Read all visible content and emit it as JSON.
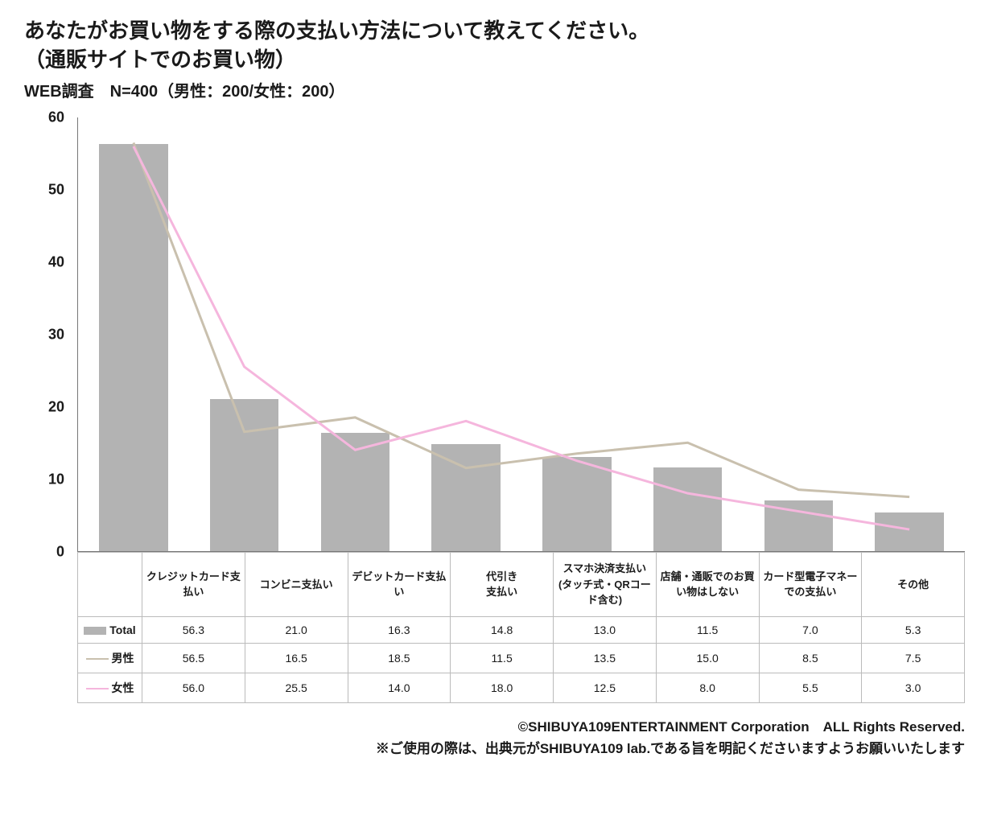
{
  "title": "あなたがお買い物をする際の支払い方法について教えてください。\n（通販サイトでのお買い物）",
  "subtitle": "WEB調査　N=400（男性：200/女性：200）",
  "chart": {
    "type": "bar+line",
    "ylim": [
      0,
      60
    ],
    "ytick_step": 10,
    "bar_color": "#b3b3b3",
    "line_colors": {
      "male": "#c9c0ae",
      "female": "#f5b6dd"
    },
    "line_width": 3,
    "background": "#ffffff",
    "axis_color": "#777777",
    "categories": [
      "クレジットカード支払い",
      "コンビニ支払い",
      "デビットカード支払い",
      "代引き\n支払い",
      "スマホ決済支払い(タッチ式・QRコード含む)",
      "店舗・通販でのお買い物はしない",
      "カード型電子マネーでの支払い",
      "その他"
    ],
    "series": {
      "total": {
        "label": "Total",
        "values": [
          56.3,
          21.0,
          16.3,
          14.8,
          13.0,
          11.5,
          7.0,
          5.3
        ]
      },
      "male": {
        "label": "男性",
        "values": [
          56.5,
          16.5,
          18.5,
          11.5,
          13.5,
          15.0,
          8.5,
          7.5
        ]
      },
      "female": {
        "label": "女性",
        "values": [
          56.0,
          25.5,
          14.0,
          18.0,
          12.5,
          8.0,
          5.5,
          3.0
        ]
      }
    },
    "table_display": {
      "total": [
        "56.3",
        "21.0",
        "16.3",
        "14.8",
        "13.0",
        "11.5",
        "7.0",
        "5.3"
      ],
      "male": [
        "56.5",
        "16.5",
        "18.5",
        "11.5",
        "13.5",
        "15.0",
        "8.5",
        "7.5"
      ],
      "female": [
        "56.0",
        "25.5",
        "14.0",
        "18.0",
        "12.5",
        "8.0",
        "5.5",
        "3.0"
      ]
    }
  },
  "footer": {
    "copyright": "©SHIBUYA109ENTERTAINMENT Corporation　ALL Rights Reserved.",
    "note": "※ご使用の際は、出典元がSHIBUYA109 lab.である旨を明記くださいますようお願いいたします"
  }
}
